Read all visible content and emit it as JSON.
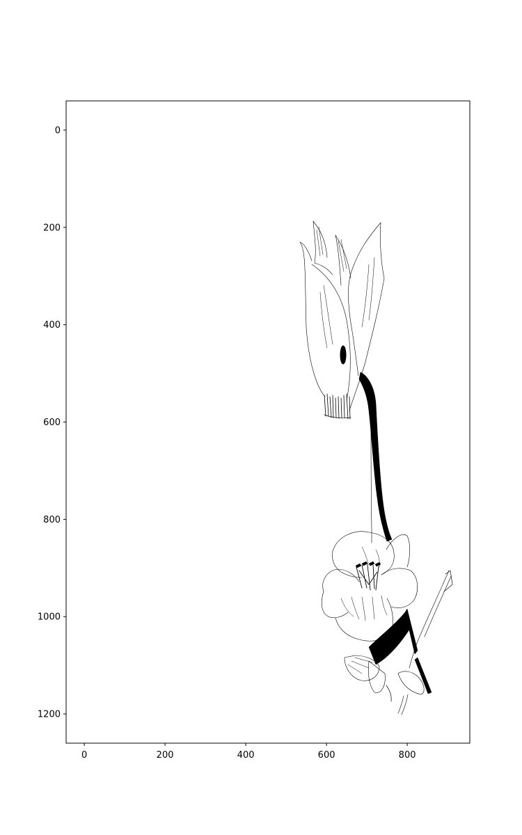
{
  "chart_data": {
    "type": "scatter",
    "title": "",
    "xlabel": "",
    "ylabel": "",
    "xlim": [
      -45,
      955
    ],
    "ylim": [
      1260,
      -60
    ],
    "y_inverted": true,
    "grid": false,
    "legend": "none",
    "x_ticks": [
      0,
      200,
      400,
      600,
      800
    ],
    "y_ticks": [
      0,
      200,
      400,
      600,
      800,
      1000,
      1200
    ],
    "x_tick_labels": [
      "0",
      "200",
      "400",
      "600",
      "800"
    ],
    "y_tick_labels": [
      "0",
      "200",
      "400",
      "600",
      "800",
      "1000",
      "1200"
    ],
    "image_content": "line sketch of a flower stem with a bud and an open blossom",
    "ink_color": "#000000",
    "background_color": "#ffffff"
  }
}
